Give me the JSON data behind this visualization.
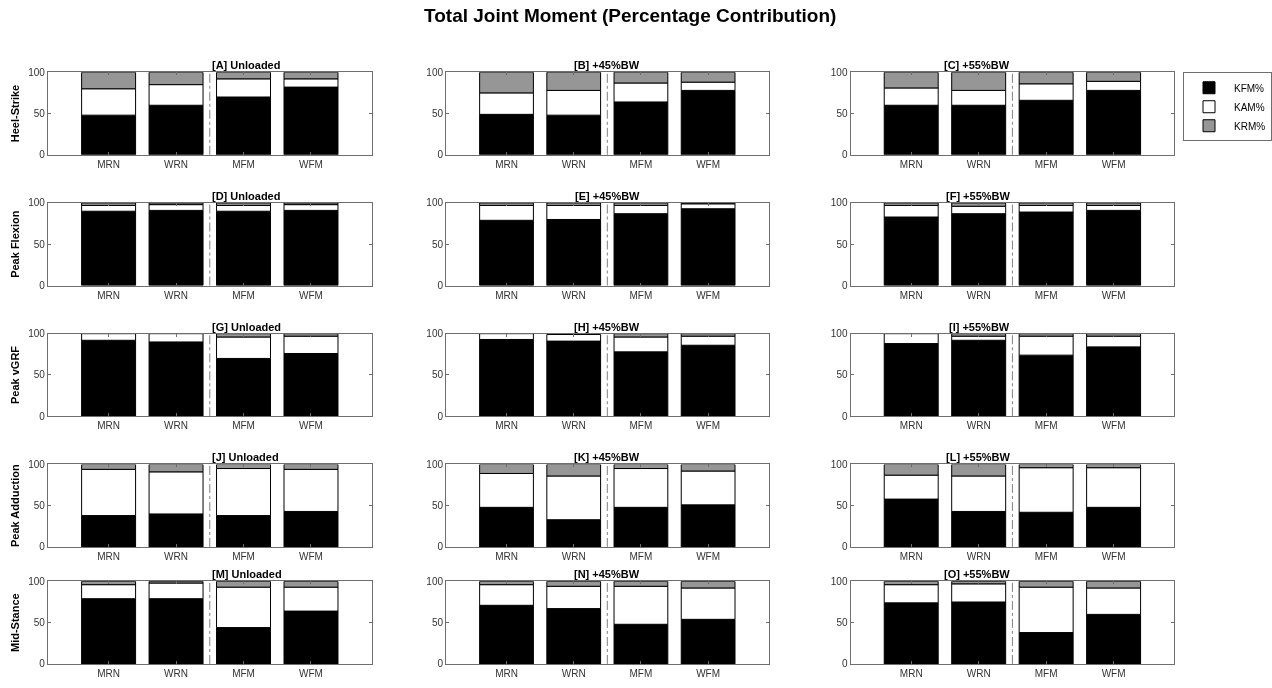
{
  "chart_data": [
    {
      "type": "bar",
      "title": "[A] Unloaded",
      "ylabel": "Heel-Strike",
      "annotations": [
        "Total Joint Moment (Percentage Contribution)"
      ],
      "stacked": true,
      "categories": [
        "MRN",
        "WRN",
        "MFM",
        "WFM"
      ],
      "ylim": [
        0,
        100
      ],
      "yticks": [
        0,
        50,
        100
      ],
      "series": [
        {
          "color": "#000000",
          "values": [
            48,
            60,
            70,
            82
          ]
        },
        {
          "color": "#ffffff",
          "values": [
            32,
            25,
            22,
            10
          ]
        },
        {
          "color": "#969696",
          "values": [
            20,
            15,
            8,
            8
          ]
        }
      ]
    },
    {
      "type": "bar",
      "title": "[B] +45%BW",
      "stacked": true,
      "categories": [
        "MRN",
        "WRN",
        "MFM",
        "WFM"
      ],
      "ylim": [
        0,
        100
      ],
      "yticks": [
        0,
        50,
        100
      ],
      "series": [
        {
          "color": "#000000",
          "values": [
            49,
            48,
            64,
            78
          ]
        },
        {
          "color": "#ffffff",
          "values": [
            26,
            30,
            23,
            10
          ]
        },
        {
          "color": "#969696",
          "values": [
            25,
            22,
            13,
            12
          ]
        }
      ]
    },
    {
      "type": "bar",
      "title": "[C] +55%BW",
      "legend": "right",
      "stacked": true,
      "categories": [
        "MRN",
        "WRN",
        "MFM",
        "WFM"
      ],
      "ylim": [
        0,
        100
      ],
      "yticks": [
        0,
        50,
        100
      ],
      "series": [
        {
          "name": "KFM%",
          "color": "#000000",
          "values": [
            60,
            60,
            66,
            78
          ]
        },
        {
          "name": "KAM%",
          "color": "#ffffff",
          "values": [
            21,
            18,
            20,
            11
          ]
        },
        {
          "name": "KRM%",
          "color": "#969696",
          "values": [
            19,
            22,
            14,
            11
          ]
        }
      ]
    },
    {
      "type": "bar",
      "title": "[D] Unloaded",
      "ylabel": "Peak Flexion",
      "stacked": true,
      "categories": [
        "MRN",
        "WRN",
        "MFM",
        "WFM"
      ],
      "ylim": [
        0,
        100
      ],
      "yticks": [
        0,
        50,
        100
      ],
      "series": [
        {
          "color": "#000000",
          "values": [
            90,
            91,
            90,
            91
          ]
        },
        {
          "color": "#ffffff",
          "values": [
            7,
            7,
            7,
            7
          ]
        },
        {
          "color": "#969696",
          "values": [
            3,
            2,
            3,
            2
          ]
        }
      ]
    },
    {
      "type": "bar",
      "title": "[E] +45%BW",
      "stacked": true,
      "categories": [
        "MRN",
        "WRN",
        "MFM",
        "WFM"
      ],
      "ylim": [
        0,
        100
      ],
      "yticks": [
        0,
        50,
        100
      ],
      "series": [
        {
          "color": "#000000",
          "values": [
            79,
            80,
            87,
            93
          ]
        },
        {
          "color": "#ffffff",
          "values": [
            18,
            17,
            10,
            6
          ]
        },
        {
          "color": "#969696",
          "values": [
            3,
            3,
            3,
            1
          ]
        }
      ]
    },
    {
      "type": "bar",
      "title": "[F] +55%BW",
      "stacked": true,
      "categories": [
        "MRN",
        "WRN",
        "MFM",
        "WFM"
      ],
      "ylim": [
        0,
        100
      ],
      "yticks": [
        0,
        50,
        100
      ],
      "series": [
        {
          "color": "#000000",
          "values": [
            83,
            87,
            89,
            91
          ]
        },
        {
          "color": "#ffffff",
          "values": [
            14,
            9,
            8,
            6
          ]
        },
        {
          "color": "#969696",
          "values": [
            3,
            4,
            3,
            3
          ]
        }
      ]
    },
    {
      "type": "bar",
      "title": "[G] Unloaded",
      "ylabel": "Peak vGRF",
      "stacked": true,
      "categories": [
        "MRN",
        "WRN",
        "MFM",
        "WFM"
      ],
      "ylim": [
        0,
        100
      ],
      "yticks": [
        0,
        50,
        100
      ],
      "series": [
        {
          "color": "#000000",
          "values": [
            92,
            90,
            70,
            76
          ]
        },
        {
          "color": "#ffffff",
          "values": [
            8,
            10,
            26,
            21
          ]
        },
        {
          "color": "#969696",
          "values": [
            null,
            null,
            4,
            3
          ]
        }
      ]
    },
    {
      "type": "bar",
      "title": "[H] +45%BW",
      "stacked": true,
      "categories": [
        "MRN",
        "WRN",
        "MFM",
        "WFM"
      ],
      "ylim": [
        0,
        100
      ],
      "yticks": [
        0,
        50,
        100
      ],
      "series": [
        {
          "color": "#000000",
          "values": [
            93,
            91,
            78,
            86
          ]
        },
        {
          "color": "#ffffff",
          "values": [
            7,
            8,
            18,
            11
          ]
        },
        {
          "color": "#969696",
          "values": [
            null,
            null,
            4,
            3
          ]
        }
      ]
    },
    {
      "type": "bar",
      "title": "[I] +55%BW",
      "stacked": true,
      "categories": [
        "MRN",
        "WRN",
        "MFM",
        "WFM"
      ],
      "ylim": [
        0,
        100
      ],
      "yticks": [
        0,
        50,
        100
      ],
      "series": [
        {
          "color": "#000000",
          "values": [
            88,
            92,
            74,
            84
          ]
        },
        {
          "color": "#ffffff",
          "values": [
            12,
            5,
            23,
            13
          ]
        },
        {
          "color": "#969696",
          "values": [
            null,
            3,
            3,
            3
          ]
        }
      ]
    },
    {
      "type": "bar",
      "title": "[J] Unloaded",
      "ylabel": "Peak Adduction",
      "stacked": true,
      "categories": [
        "MRN",
        "WRN",
        "MFM",
        "WFM"
      ],
      "ylim": [
        0,
        100
      ],
      "yticks": [
        0,
        50,
        100
      ],
      "series": [
        {
          "color": "#000000",
          "values": [
            38,
            40,
            38,
            43
          ]
        },
        {
          "color": "#ffffff",
          "values": [
            56,
            51,
            57,
            51
          ]
        },
        {
          "color": "#969696",
          "values": [
            6,
            9,
            5,
            6
          ]
        }
      ]
    },
    {
      "type": "bar",
      "title": "[K] +45%BW",
      "stacked": true,
      "categories": [
        "MRN",
        "WRN",
        "MFM",
        "WFM"
      ],
      "ylim": [
        0,
        100
      ],
      "yticks": [
        0,
        50,
        100
      ],
      "series": [
        {
          "color": "#000000",
          "values": [
            48,
            33,
            48,
            51
          ]
        },
        {
          "color": "#ffffff",
          "values": [
            41,
            53,
            47,
            41
          ]
        },
        {
          "color": "#969696",
          "values": [
            11,
            14,
            5,
            8
          ]
        }
      ]
    },
    {
      "type": "bar",
      "title": "[L] +55%BW",
      "stacked": true,
      "categories": [
        "MRN",
        "WRN",
        "MFM",
        "WFM"
      ],
      "ylim": [
        0,
        100
      ],
      "yticks": [
        0,
        50,
        100
      ],
      "series": [
        {
          "color": "#000000",
          "values": [
            58,
            43,
            42,
            48
          ]
        },
        {
          "color": "#ffffff",
          "values": [
            29,
            43,
            54,
            48
          ]
        },
        {
          "color": "#969696",
          "values": [
            13,
            14,
            4,
            4
          ]
        }
      ]
    },
    {
      "type": "bar",
      "title": "[M] Unloaded",
      "ylabel": "Mid-Stance",
      "stacked": true,
      "categories": [
        "MRN",
        "WRN",
        "MFM",
        "WFM"
      ],
      "ylim": [
        0,
        100
      ],
      "yticks": [
        0,
        50,
        100
      ],
      "series": [
        {
          "color": "#000000",
          "values": [
            79,
            79,
            44,
            64
          ]
        },
        {
          "color": "#ffffff",
          "values": [
            17,
            19,
            49,
            29
          ]
        },
        {
          "color": "#969696",
          "values": [
            4,
            2,
            7,
            7
          ]
        }
      ]
    },
    {
      "type": "bar",
      "title": "[N] +45%BW",
      "stacked": true,
      "categories": [
        "MRN",
        "WRN",
        "MFM",
        "WFM"
      ],
      "ylim": [
        0,
        100
      ],
      "yticks": [
        0,
        50,
        100
      ],
      "series": [
        {
          "color": "#000000",
          "values": [
            71,
            67,
            48,
            54
          ]
        },
        {
          "color": "#ffffff",
          "values": [
            25,
            27,
            46,
            38
          ]
        },
        {
          "color": "#969696",
          "values": [
            4,
            6,
            6,
            8
          ]
        }
      ]
    },
    {
      "type": "bar",
      "title": "[O] +55%BW",
      "stacked": true,
      "categories": [
        "MRN",
        "WRN",
        "MFM",
        "WFM"
      ],
      "ylim": [
        0,
        100
      ],
      "yticks": [
        0,
        50,
        100
      ],
      "series": [
        {
          "color": "#000000",
          "values": [
            74,
            75,
            38,
            60
          ]
        },
        {
          "color": "#ffffff",
          "values": [
            22,
            22,
            55,
            32
          ]
        },
        {
          "color": "#969696",
          "values": [
            4,
            3,
            7,
            8
          ]
        }
      ]
    }
  ]
}
